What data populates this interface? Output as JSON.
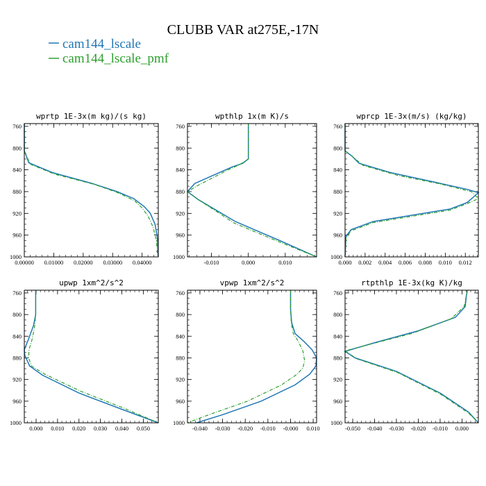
{
  "figure": {
    "title": "CLUBB VAR at275E,-17N",
    "legend": [
      {
        "name": "cam144_lscale",
        "color": "#1f77b4",
        "style": "solid"
      },
      {
        "name": "cam144_lscale_pmf",
        "color": "#2ca02c",
        "style": "dashed"
      }
    ]
  },
  "chart_data": [
    {
      "type": "line",
      "title": "wprtp  1E-3x(m kg)/(s kg)",
      "xlim": [
        0,
        0.0455
      ],
      "ylim": [
        1000,
        755
      ],
      "xticks": [
        0,
        0.01,
        0.02,
        0.03,
        0.04
      ],
      "xticklabels": [
        "0.00000",
        "0.01000",
        "0.02000",
        "0.03000",
        "0.04000"
      ],
      "yticks": [
        760,
        800,
        840,
        880,
        920,
        960,
        1000
      ],
      "yticklabels": [
        "760",
        "800",
        "840",
        "880",
        "920",
        "960",
        "1000"
      ],
      "series": [
        {
          "name": "cam144_lscale",
          "x": [
            0,
            0,
            0.0007,
            0.0015,
            0.0095,
            0.023,
            0.0315,
            0.0372,
            0.0408,
            0.0428,
            0.0444,
            0.0452,
            0.0455
          ],
          "y": [
            755,
            805,
            815,
            827,
            845,
            865,
            880,
            893,
            908,
            920,
            940,
            965,
            1000
          ]
        },
        {
          "name": "cam144_lscale_pmf",
          "x": [
            0,
            0,
            0.0007,
            0.0022,
            0.0103,
            0.024,
            0.0322,
            0.0375,
            0.04,
            0.042,
            0.0437,
            0.0448,
            0.0453
          ],
          "y": [
            755,
            805,
            815,
            830,
            848,
            867,
            883,
            897,
            910,
            925,
            945,
            968,
            1000
          ]
        }
      ]
    },
    {
      "type": "line",
      "title": "wpthlp  1x(m K)/s",
      "xlim": [
        -0.0165,
        0.0185
      ],
      "ylim": [
        1000,
        755
      ],
      "xticks": [
        -0.01,
        0,
        0.01
      ],
      "xticklabels": [
        "-0.010",
        "0.000",
        "0.010"
      ],
      "yticks": [
        760,
        800,
        840,
        880,
        920,
        960,
        1000
      ],
      "yticklabels": [
        "760",
        "800",
        "840",
        "880",
        "920",
        "960",
        "1000"
      ],
      "series": [
        {
          "name": "cam144_lscale",
          "x": [
            0,
            0,
            -0.0015,
            -0.0045,
            -0.0145,
            -0.0165,
            -0.0135,
            -0.0035,
            0.0085,
            0.0185
          ],
          "y": [
            755,
            820,
            828,
            835,
            865,
            880,
            895,
            935,
            970,
            1000
          ]
        },
        {
          "name": "cam144_lscale_pmf",
          "x": [
            0,
            0,
            -0.0022,
            -0.0055,
            -0.0135,
            -0.0165,
            -0.0135,
            -0.0038,
            0.0082,
            0.0185
          ],
          "y": [
            755,
            820,
            830,
            840,
            868,
            880,
            895,
            938,
            972,
            1000
          ]
        }
      ]
    },
    {
      "type": "line",
      "title": "wprcp  1E-3x(m/s) (kg/kg)",
      "xlim": [
        0,
        0.0133
      ],
      "ylim": [
        1000,
        755
      ],
      "xticks": [
        0,
        0.002,
        0.004,
        0.006,
        0.008,
        0.01,
        0.012
      ],
      "xticklabels": [
        "0.000",
        "0.002",
        "0.004",
        "0.006",
        "0.008",
        "0.010",
        "0.012"
      ],
      "yticks": [
        760,
        800,
        840,
        880,
        920,
        960,
        1000
      ],
      "yticklabels": [
        "760",
        "800",
        "840",
        "880",
        "920",
        "960",
        "1000"
      ],
      "series": [
        {
          "name": "cam144_lscale",
          "x": [
            0,
            0,
            0.0007,
            0.0014,
            0.0045,
            0.0088,
            0.0122,
            0.0133,
            0.0122,
            0.0105,
            0.0028,
            0.0006,
            0.0001,
            0
          ],
          "y": [
            755,
            805,
            815,
            828,
            845,
            862,
            876,
            882,
            900,
            912,
            935,
            950,
            962,
            1000
          ]
        },
        {
          "name": "cam144_lscale_pmf",
          "x": [
            0,
            0,
            0.0007,
            0.0018,
            0.0052,
            0.0095,
            0.0126,
            0.0133,
            0.0122,
            0.0105,
            0.0028,
            0.0006,
            0.0001,
            0
          ],
          "y": [
            755,
            805,
            815,
            832,
            850,
            866,
            880,
            893,
            902,
            914,
            937,
            952,
            965,
            1000
          ]
        }
      ]
    },
    {
      "type": "line",
      "title": "upwp  1xm^2/s^2",
      "xlim": [
        -0.0055,
        0.057
      ],
      "ylim": [
        1000,
        755
      ],
      "xticks": [
        0,
        0.01,
        0.02,
        0.03,
        0.04,
        0.05
      ],
      "xticklabels": [
        "0.000",
        "0.010",
        "0.020",
        "0.030",
        "0.040",
        "0.050"
      ],
      "yticks": [
        760,
        800,
        840,
        880,
        920,
        960,
        1000
      ],
      "yticklabels": [
        "760",
        "800",
        "840",
        "880",
        "920",
        "960",
        "1000"
      ],
      "series": [
        {
          "name": "cam144_lscale",
          "x": [
            -0.0002,
            -0.0002,
            -0.0012,
            -0.0035,
            -0.0055,
            -0.0053,
            -0.003,
            0.003,
            0.02,
            0.04,
            0.057
          ],
          "y": [
            755,
            800,
            820,
            845,
            865,
            875,
            895,
            912,
            945,
            975,
            1000
          ]
        },
        {
          "name": "cam144_lscale_pmf",
          "x": [
            -0.0002,
            -0.0002,
            -0.0006,
            -0.0018,
            -0.0033,
            -0.0035,
            -0.0022,
            0.004,
            0.021,
            0.041,
            0.057
          ],
          "y": [
            755,
            800,
            820,
            845,
            865,
            880,
            895,
            910,
            942,
            973,
            1000
          ]
        }
      ]
    },
    {
      "type": "line",
      "title": "vpwp  1xm^2/s^2",
      "xlim": [
        -0.0455,
        0.0115
      ],
      "ylim": [
        1000,
        755
      ],
      "xticks": [
        -0.04,
        -0.03,
        -0.02,
        -0.01,
        0,
        0.01
      ],
      "xticklabels": [
        "-0.040",
        "-0.030",
        "-0.020",
        "-0.010",
        "-0.000",
        "0.010"
      ],
      "yticks": [
        760,
        800,
        840,
        880,
        920,
        960,
        1000
      ],
      "yticklabels": [
        "760",
        "800",
        "840",
        "880",
        "920",
        "960",
        "1000"
      ],
      "series": [
        {
          "name": "cam144_lscale",
          "x": [
            0,
            0,
            0.0005,
            0.002,
            0.006,
            0.0095,
            0.0115,
            0.0112,
            0.0085,
            0.002,
            -0.013,
            -0.03,
            -0.0415
          ],
          "y": [
            755,
            790,
            815,
            835,
            850,
            865,
            880,
            895,
            910,
            930,
            960,
            985,
            1000
          ]
        },
        {
          "name": "cam144_lscale_pmf",
          "x": [
            0,
            0,
            0.0003,
            0.0012,
            0.0035,
            0.0055,
            0.0062,
            0.0055,
            0.003,
            -0.004,
            -0.019,
            -0.036,
            -0.0455
          ],
          "y": [
            755,
            790,
            815,
            835,
            850,
            868,
            885,
            898,
            910,
            930,
            960,
            985,
            1000
          ]
        }
      ]
    },
    {
      "type": "line",
      "title": "rtpthlp  1E-3x(kg K)/kg",
      "xlim": [
        -0.0535,
        0.0075
      ],
      "ylim": [
        1000,
        755
      ],
      "xticks": [
        -0.05,
        -0.04,
        -0.03,
        -0.02,
        -0.01,
        0
      ],
      "xticklabels": [
        "-0.050",
        "-0.040",
        "-0.030",
        "-0.020",
        "-0.010",
        "0.000"
      ],
      "yticks": [
        760,
        800,
        840,
        880,
        920,
        960,
        1000
      ],
      "yticklabels": [
        "760",
        "800",
        "840",
        "880",
        "920",
        "960",
        "1000"
      ],
      "series": [
        {
          "name": "cam144_lscale",
          "x": [
            0.0025,
            0.002,
            0.0015,
            -0.003,
            -0.02,
            -0.04,
            -0.0535,
            -0.049,
            -0.03,
            -0.01,
            0.003,
            0.0075
          ],
          "y": [
            755,
            765,
            785,
            805,
            830,
            852,
            868,
            880,
            905,
            945,
            980,
            1000
          ]
        },
        {
          "name": "cam144_lscale_pmf",
          "x": [
            0.0025,
            0.002,
            0.001,
            -0.005,
            -0.023,
            -0.043,
            -0.0535,
            -0.048,
            -0.0295,
            -0.0098,
            0.003,
            0.0075
          ],
          "y": [
            755,
            765,
            785,
            808,
            835,
            856,
            867,
            882,
            907,
            947,
            982,
            1000
          ]
        }
      ]
    }
  ]
}
